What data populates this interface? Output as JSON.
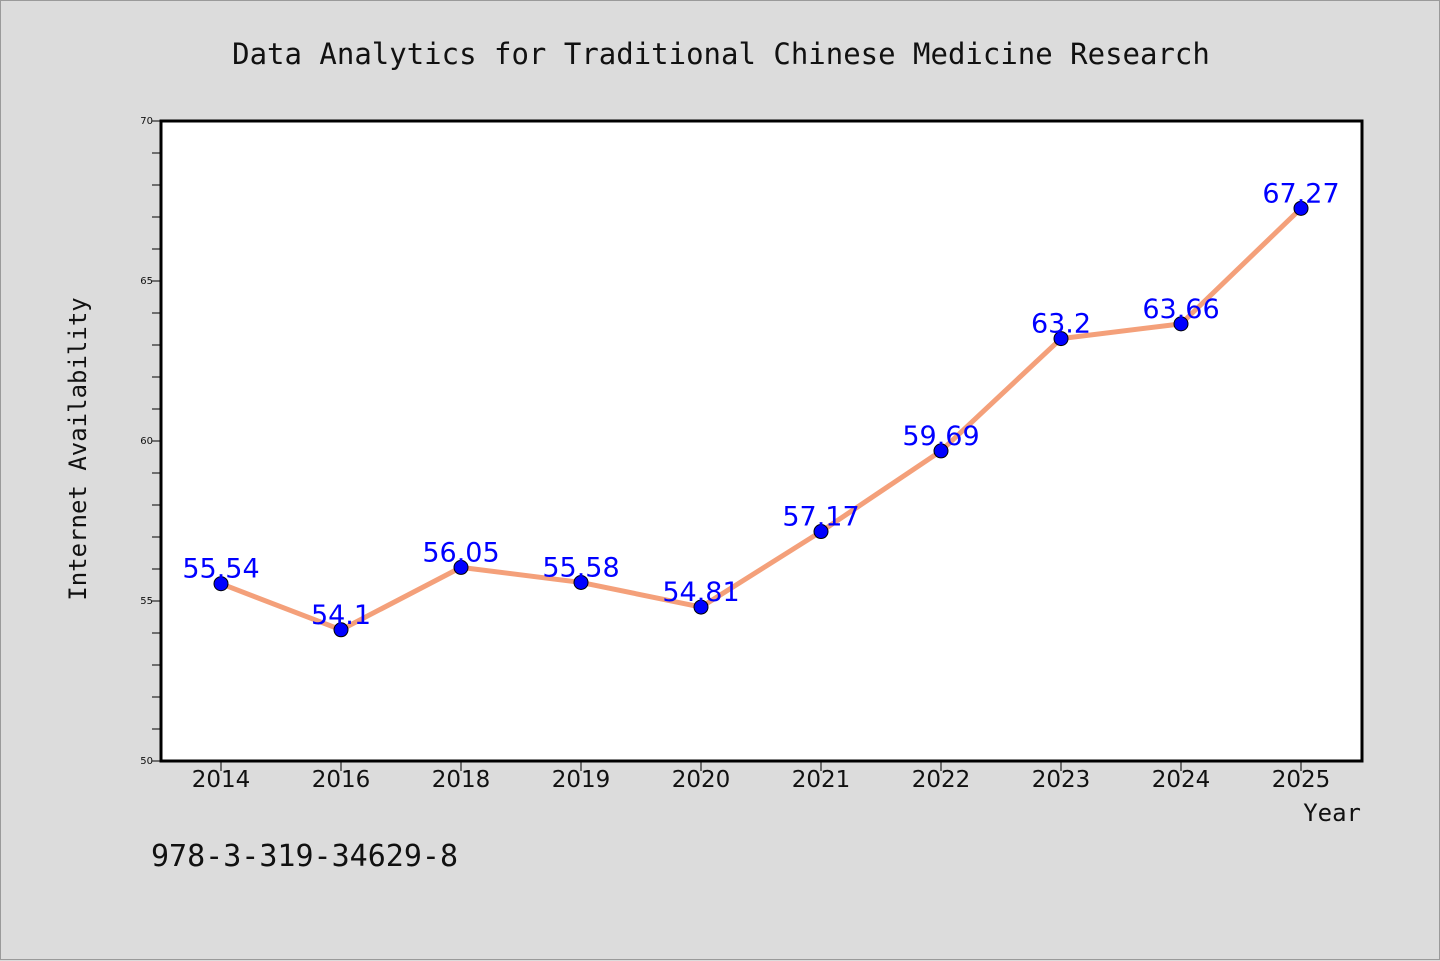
{
  "chart_data": {
    "type": "line",
    "title": "Data Analytics for Traditional Chinese Medicine Research",
    "xlabel": "Year",
    "ylabel": "Internet Availability",
    "categories": [
      "2014",
      "2016",
      "2018",
      "2019",
      "2020",
      "2021",
      "2022",
      "2023",
      "2024",
      "2025"
    ],
    "series": [
      {
        "values": [
          55.54,
          54.1,
          56.05,
          55.58,
          54.81,
          57.17,
          59.69,
          63.2,
          63.66,
          67.27
        ]
      }
    ],
    "data_labels": [
      "55.54",
      "54.1",
      "56.05",
      "55.58",
      "54.81",
      "57.17",
      "59.69",
      "63.2",
      "63.66",
      "67.27"
    ],
    "ylim": [
      50,
      70
    ],
    "yticks": [
      50,
      55,
      60,
      65,
      70
    ],
    "ytick_labels": [
      "50",
      "55",
      "60",
      "65",
      "70"
    ],
    "grid": false,
    "line_color": "#f4a07a",
    "marker_color": "#0000ff",
    "label_color": "#0000ff",
    "background_color": "#dcdcdc"
  },
  "footer": {
    "isbn": "978-3-319-34629-8"
  }
}
